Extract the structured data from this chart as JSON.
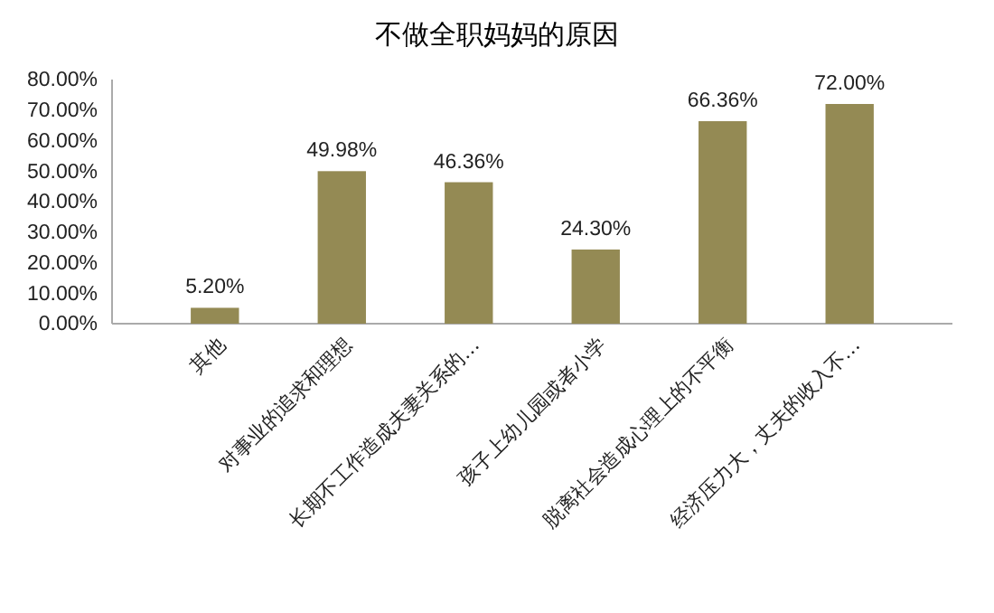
{
  "chart_data": {
    "type": "bar",
    "title": "不做全职妈妈的原因",
    "categories": [
      "其他",
      "对事业的追求和理想",
      "长期不工作造成夫妻关系的…",
      "孩子上幼儿园或者小学",
      "脱离社会造成心理上的不平衡",
      "经济压力大，丈夫的收入不…"
    ],
    "values": [
      5.2,
      49.98,
      46.36,
      24.3,
      66.36,
      72.0
    ],
    "value_labels": [
      "5.20%",
      "49.98%",
      "46.36%",
      "24.30%",
      "66.36%",
      "72.00%"
    ],
    "color": "#948a54",
    "ylim": [
      0,
      80
    ],
    "yticks": [
      {
        "value": 0,
        "label": "0.00%"
      },
      {
        "value": 10,
        "label": "10.00%"
      },
      {
        "value": 20,
        "label": "20.00%"
      },
      {
        "value": 30,
        "label": "30.00%"
      },
      {
        "value": 40,
        "label": "40.00%"
      },
      {
        "value": 50,
        "label": "50.00%"
      },
      {
        "value": 60,
        "label": "60.00%"
      },
      {
        "value": 70,
        "label": "70.00%"
      },
      {
        "value": 80,
        "label": "80.00%"
      }
    ],
    "grid": false
  }
}
